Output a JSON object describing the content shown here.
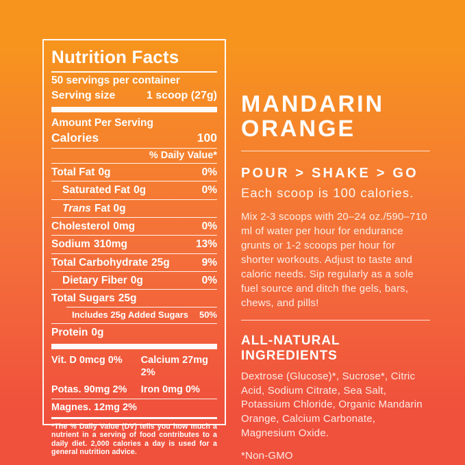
{
  "colors": {
    "background_top": "#F7941E",
    "background_middle": "#F4713A",
    "background_bottom": "#F0513C",
    "text": "#FFFFFF"
  },
  "nutrition_panel": {
    "title": "Nutrition Facts",
    "servings_per_container": "50 servings per container",
    "serving_size": {
      "label": "Serving size",
      "value": "1 scoop (27g)"
    },
    "amount_per_serving": "Amount Per Serving",
    "calories": {
      "label": "Calories",
      "value": "100"
    },
    "daily_value_header": "% Daily Value*",
    "rows": [
      {
        "name": "Total Fat",
        "amount": "0g",
        "dv": "0%"
      },
      {
        "name": "Saturated Fat",
        "amount": "0g",
        "dv": "0%"
      },
      {
        "name": "Trans",
        "amount": "Fat 0g",
        "dv": ""
      },
      {
        "name": "Cholesterol",
        "amount": "0mg",
        "dv": "0%"
      },
      {
        "name": "Sodium",
        "amount": "310mg",
        "dv": "13%"
      },
      {
        "name": "Total Carbohydrate",
        "amount": "25g",
        "dv": "9%"
      },
      {
        "name": "Dietary Fiber",
        "amount": "0g",
        "dv": "0%"
      },
      {
        "name": "Total Sugars",
        "amount": "25g",
        "dv": ""
      },
      {
        "name": "Includes 25g Added Sugars",
        "amount": "",
        "dv": "50%"
      },
      {
        "name": "Protein",
        "amount": "0g",
        "dv": ""
      }
    ],
    "micros": [
      {
        "left": "Vit. D 0mcg 0%",
        "right": "Calcium 27mg 2%"
      },
      {
        "left": "Potas. 90mg 2%",
        "right": "Iron 0mg 0%"
      },
      {
        "left": "Magnes. 12mg 2%",
        "right": ""
      }
    ],
    "footnote": "*The % Daily Value (DV) tells you how much a nutrient in a serving of food contributes to a daily diet. 2,000 calories a day is used for a general nutrition advice."
  },
  "flavor_panel": {
    "flavor_line1": "MANDARIN",
    "flavor_line2": "ORANGE",
    "tagline": "POUR > SHAKE > GO",
    "tagline_sub": "Each scoop is 100 calories.",
    "directions": "Mix 2-3 scoops with 20–24 oz./590–710 ml of water per hour for endurance grunts or 1-2 scoops per hour for shorter workouts. Adjust to taste and caloric needs. Sip regularly as a sole fuel source and ditch the gels, bars, chews, and pills!",
    "ingredients_heading": "ALL-NATURAL INGREDIENTS",
    "ingredients_list": "Dextrose (Glucose)*, Sucrose*, Citric Acid, Sodium Citrate, Sea Salt, Potassium Chloride, Organic Mandarin Orange, Calcium Carbonate, Magnesium Oxide.",
    "non_gmo_note": "*Non-GMO"
  }
}
